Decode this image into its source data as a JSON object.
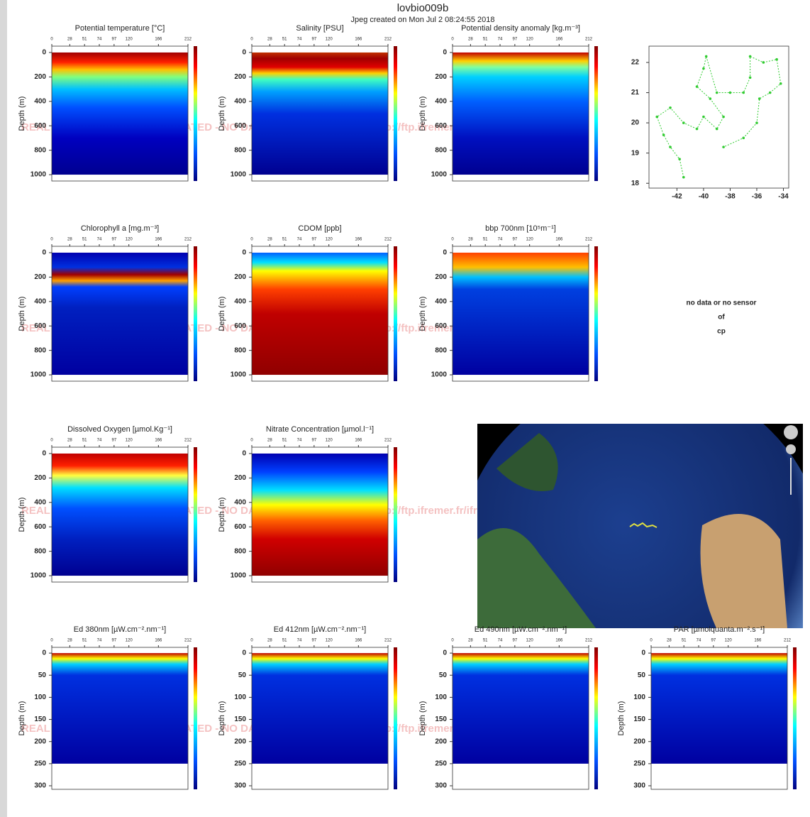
{
  "title": "lovbio009b",
  "subtitle": "Jpeg created on  Mon Jul  2 08:24:55 2018",
  "watermark": "REAL TIME DATA - NOT CALIBRATED - NO DATA QC - FOR QC DATA : ftp://ftp.ifremer.fr/ifremer/argo",
  "note": [
    "no data or no sensor",
    "of",
    "cp"
  ],
  "chart_data": [
    {
      "type": "heatmap",
      "title": "Potential temperature [°C]",
      "ylabel": "Depth (m)",
      "xlim": [
        0,
        212
      ],
      "xticks": [
        0,
        28,
        51,
        74,
        97,
        120,
        166,
        212
      ],
      "ylim": [
        -52,
        1052
      ],
      "yticks": [
        0,
        200,
        400,
        600,
        800,
        1000
      ]
    },
    {
      "type": "heatmap",
      "title": "Salinity [PSU]",
      "ylabel": "Depth (m)",
      "xlim": [
        0,
        212
      ],
      "xticks": [
        0,
        28,
        51,
        74,
        97,
        120,
        166,
        212
      ],
      "ylim": [
        -52,
        1052
      ],
      "yticks": [
        0,
        200,
        400,
        600,
        800,
        1000
      ]
    },
    {
      "type": "heatmap",
      "title": "Potential density anomaly [kg.m⁻³]",
      "ylabel": "Depth (m)",
      "xlim": [
        0,
        212
      ],
      "xticks": [
        0,
        28,
        51,
        74,
        97,
        120,
        166,
        212
      ],
      "ylim": [
        -52,
        1052
      ],
      "yticks": [
        0,
        200,
        400,
        600,
        800,
        1000
      ]
    },
    {
      "type": "scatter",
      "xlim": [
        -44.1,
        -33.6
      ],
      "ylim": [
        17.84,
        22.54
      ],
      "xticks": [
        -42,
        -40,
        -38,
        -36,
        -34
      ],
      "yticks": [
        18,
        19,
        20,
        21,
        22
      ],
      "series": [
        {
          "color": "#33cc33",
          "x": [
            -41.5,
            -41.8,
            -42.5,
            -43,
            -43.5,
            -42.5,
            -41.5,
            -40.5,
            -40,
            -39,
            -38.5,
            -39.5,
            -40.5,
            -40,
            -39.8,
            -39,
            -38,
            -37,
            -36.5,
            -36.5,
            -35.5,
            -34.5,
            -34.2,
            -35,
            -35.8,
            -36,
            -37,
            -38.5
          ],
          "y": [
            18.2,
            18.8,
            19.2,
            19.6,
            20.2,
            20.5,
            20,
            19.8,
            20.2,
            19.8,
            20.2,
            20.8,
            21.2,
            21.8,
            22.2,
            21,
            21,
            21,
            21.5,
            22.2,
            22,
            22.1,
            21.3,
            21,
            20.8,
            20,
            19.5,
            19.2
          ]
        }
      ]
    },
    {
      "type": "heatmap",
      "title": "Chlorophyll a [mg.m⁻³]",
      "ylabel": "Depth (m)",
      "xlim": [
        0,
        212
      ],
      "xticks": [
        0,
        28,
        51,
        74,
        97,
        120,
        166,
        212
      ],
      "ylim": [
        -52,
        1052
      ],
      "yticks": [
        0,
        200,
        400,
        600,
        800,
        1000
      ]
    },
    {
      "type": "heatmap",
      "title": "CDOM  [ppb]",
      "ylabel": "Depth (m)",
      "xlim": [
        0,
        212
      ],
      "xticks": [
        0,
        28,
        51,
        74,
        97,
        120,
        166,
        212
      ],
      "ylim": [
        -52,
        1052
      ],
      "yticks": [
        0,
        200,
        400,
        600,
        800,
        1000
      ]
    },
    {
      "type": "heatmap",
      "title": "bbp 700nm [10⁵m⁻¹]",
      "ylabel": "Depth (m)",
      "xlim": [
        0,
        212
      ],
      "xticks": [
        0,
        28,
        51,
        74,
        97,
        120,
        166,
        212
      ],
      "ylim": [
        -52,
        1052
      ],
      "yticks": [
        0,
        200,
        400,
        600,
        800,
        1000
      ]
    },
    {
      "type": "heatmap",
      "title": "Dissolved Oxygen [µmol.Kg⁻¹]",
      "ylabel": "Depth (m)",
      "xlim": [
        0,
        212
      ],
      "xticks": [
        0,
        28,
        51,
        74,
        97,
        120,
        166,
        212
      ],
      "ylim": [
        -52,
        1052
      ],
      "yticks": [
        0,
        200,
        400,
        600,
        800,
        1000
      ]
    },
    {
      "type": "heatmap",
      "title": "Nitrate Concentration [µmol.l⁻¹]",
      "ylabel": "Depth (m)",
      "xlim": [
        0,
        212
      ],
      "xticks": [
        0,
        28,
        51,
        74,
        97,
        120,
        166,
        212
      ],
      "ylim": [
        -52,
        1052
      ],
      "yticks": [
        0,
        200,
        400,
        600,
        800,
        1000
      ]
    },
    {
      "type": "heatmap",
      "title": "Ed 380nm [µW.cm⁻².nm⁻¹]",
      "ylabel": "Depth (m)",
      "xlim": [
        0,
        212
      ],
      "xticks": [
        0,
        28,
        51,
        74,
        97,
        120,
        166,
        212
      ],
      "ylim": [
        -13,
        308
      ],
      "yticks": [
        0,
        50,
        100,
        150,
        200,
        250,
        300
      ]
    },
    {
      "type": "heatmap",
      "title": "Ed 412nm [µW.cm⁻².nm⁻¹]",
      "ylabel": "Depth (m)",
      "xlim": [
        0,
        212
      ],
      "xticks": [
        0,
        28,
        51,
        74,
        97,
        120,
        166,
        212
      ],
      "ylim": [
        -13,
        308
      ],
      "yticks": [
        0,
        50,
        100,
        150,
        200,
        250,
        300
      ]
    },
    {
      "type": "heatmap",
      "title": "Ed 490nm [µW.cm⁻².nm⁻¹]",
      "ylabel": "Depth (m)",
      "xlim": [
        0,
        212
      ],
      "xticks": [
        0,
        28,
        51,
        74,
        97,
        120,
        166,
        212
      ],
      "ylim": [
        -13,
        308
      ],
      "yticks": [
        0,
        50,
        100,
        150,
        200,
        250,
        300
      ]
    },
    {
      "type": "heatmap",
      "title": "PAR [µmolquanta.m⁻².s⁻¹]",
      "ylabel": "Depth (m)",
      "xlim": [
        0,
        212
      ],
      "xticks": [
        0,
        28,
        51,
        74,
        97,
        120,
        166,
        212
      ],
      "ylim": [
        -13,
        308
      ],
      "yticks": [
        0,
        50,
        100,
        150,
        200,
        250,
        300
      ]
    }
  ]
}
